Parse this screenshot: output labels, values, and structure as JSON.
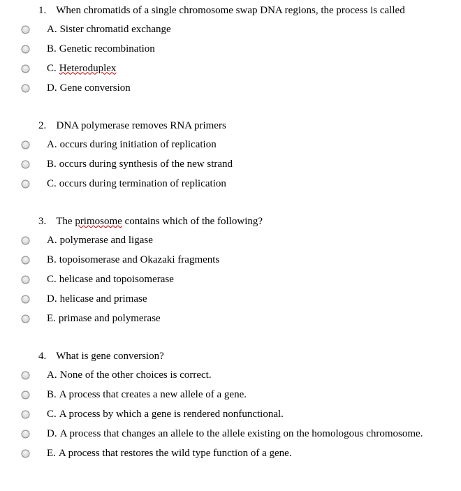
{
  "questions": [
    {
      "number": "1.",
      "stem_parts": [
        {
          "text": "When chromatids of a single chromosome swap DNA regions, the process is called",
          "squiggle": false
        }
      ],
      "options": [
        {
          "letter": "A.",
          "parts": [
            {
              "text": "Sister chromatid exchange",
              "squiggle": false
            }
          ]
        },
        {
          "letter": "B.",
          "parts": [
            {
              "text": "Genetic recombination",
              "squiggle": false
            }
          ]
        },
        {
          "letter": "C.",
          "parts": [
            {
              "text": "Heteroduplex",
              "squiggle": true
            }
          ]
        },
        {
          "letter": "D.",
          "parts": [
            {
              "text": "Gene conversion",
              "squiggle": false
            }
          ]
        }
      ]
    },
    {
      "number": "2.",
      "stem_parts": [
        {
          "text": "DNA polymerase removes RNA primers",
          "squiggle": false
        }
      ],
      "options": [
        {
          "letter": "A.",
          "parts": [
            {
              "text": "occurs during initiation of replication",
              "squiggle": false
            }
          ]
        },
        {
          "letter": "B.",
          "parts": [
            {
              "text": "occurs during synthesis of the new strand",
              "squiggle": false
            }
          ]
        },
        {
          "letter": "C.",
          "parts": [
            {
              "text": "occurs during termination of replication",
              "squiggle": false
            }
          ]
        }
      ]
    },
    {
      "number": "3.",
      "stem_parts": [
        {
          "text": "The ",
          "squiggle": false
        },
        {
          "text": "primosome",
          "squiggle": true
        },
        {
          "text": " contains which of the following?",
          "squiggle": false
        }
      ],
      "options": [
        {
          "letter": "A.",
          "parts": [
            {
              "text": "polymerase and ligase",
              "squiggle": false
            }
          ]
        },
        {
          "letter": "B.",
          "parts": [
            {
              "text": "topoisomerase and Okazaki fragments",
              "squiggle": false
            }
          ]
        },
        {
          "letter": "C.",
          "parts": [
            {
              "text": "helicase and topoisomerase",
              "squiggle": false
            }
          ]
        },
        {
          "letter": "D.",
          "parts": [
            {
              "text": "helicase and primase",
              "squiggle": false
            }
          ]
        },
        {
          "letter": "E.",
          "parts": [
            {
              "text": "primase and polymerase",
              "squiggle": false
            }
          ]
        }
      ]
    },
    {
      "number": "4.",
      "stem_parts": [
        {
          "text": "What is gene conversion?",
          "squiggle": false
        }
      ],
      "options": [
        {
          "letter": "A.",
          "parts": [
            {
              "text": "None of the other choices is correct.",
              "squiggle": false
            }
          ]
        },
        {
          "letter": "B.",
          "parts": [
            {
              "text": "A process that creates a new allele of a gene.",
              "squiggle": false
            }
          ]
        },
        {
          "letter": "C.",
          "parts": [
            {
              "text": "A process by which a gene is rendered nonfunctional.",
              "squiggle": false
            }
          ]
        },
        {
          "letter": "D.",
          "parts": [
            {
              "text": "A process that changes an allele to the allele existing on the homologous chromosome.",
              "squiggle": false
            }
          ]
        },
        {
          "letter": "E.",
          "parts": [
            {
              "text": "A process that restores the wild type function of a gene.",
              "squiggle": false
            }
          ]
        }
      ]
    }
  ],
  "styling": {
    "font_family": "Times New Roman, serif",
    "font_size_pt": 11,
    "text_color": "#000000",
    "background_color": "#ffffff",
    "squiggle_color": "#c00000",
    "radio_stroke": "#888888",
    "radio_fill_top": "#f5f5f5",
    "radio_fill_bottom": "#d0d0d0"
  }
}
